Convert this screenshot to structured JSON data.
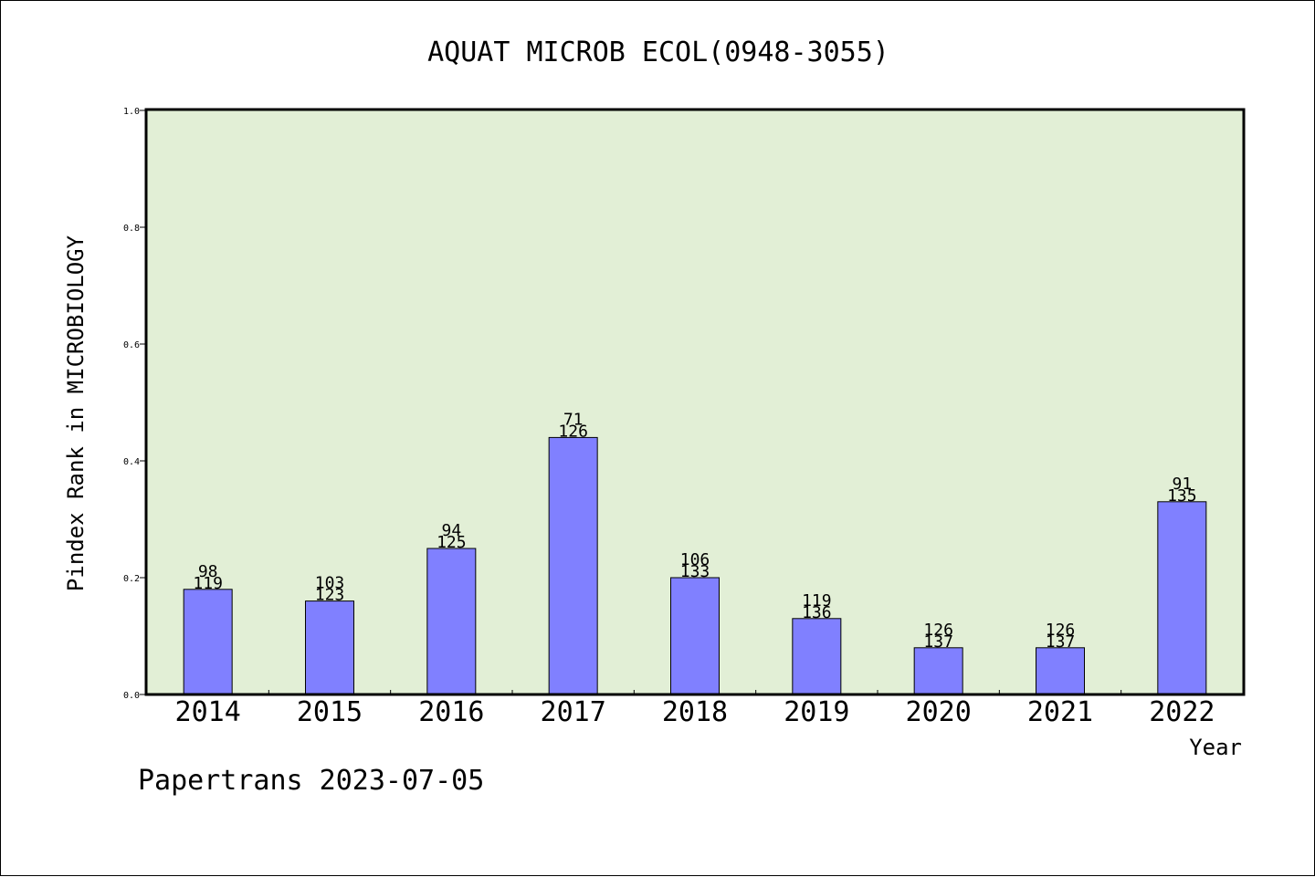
{
  "chart_data": {
    "type": "bar",
    "title": "AQUAT MICROB ECOL(0948-3055)",
    "xlabel": "Year",
    "ylabel": "Pindex Rank in MICROBIOLOGY",
    "ylim": [
      0,
      1.0
    ],
    "yticks": [
      "0.0",
      "0.2",
      "0.4",
      "0.6",
      "0.8",
      "1.0"
    ],
    "categories": [
      "2014",
      "2015",
      "2016",
      "2017",
      "2018",
      "2019",
      "2020",
      "2021",
      "2022"
    ],
    "values": [
      0.18,
      0.16,
      0.25,
      0.44,
      0.2,
      0.13,
      0.08,
      0.08,
      0.33
    ],
    "labels_top": [
      "98",
      "103",
      "94",
      "71",
      "106",
      "119",
      "126",
      "126",
      "91"
    ],
    "labels_bottom": [
      "119",
      "123",
      "125",
      "126",
      "133",
      "136",
      "137",
      "137",
      "135"
    ],
    "grid": false,
    "colors": {
      "plot_background": "#e2efd6",
      "bar_fill": "#8080ff",
      "bar_stroke": "#000000"
    }
  },
  "footer": "Papertrans 2023-07-05"
}
